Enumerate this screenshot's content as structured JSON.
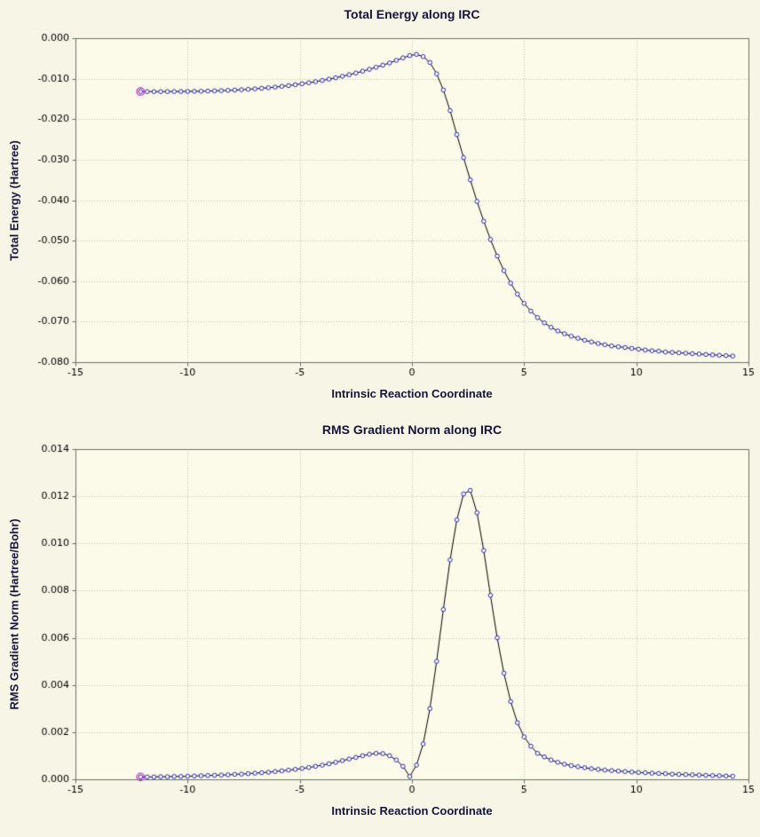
{
  "style": {
    "figure_bg": "#f6f5e6",
    "plot_bg": "#fcfbe9",
    "grid_color": "#b9c2ac",
    "axis_color": "#6b7368",
    "tick_label_color": "#000000",
    "text_color": "#14143c",
    "frame_top_color": "#4a70c0",
    "frame_edge_color": "#9aa4b0"
  },
  "chart_data": [
    {
      "type": "line",
      "title": "Total Energy along IRC",
      "xlabel": "Intrinsic Reaction Coordinate",
      "ylabel": "Total Energy (Hartree)",
      "xlim": [
        -15,
        15
      ],
      "ylim": [
        -0.08,
        0.0
      ],
      "xticks": [
        -15,
        -10,
        -5,
        0,
        5,
        10,
        15
      ],
      "yticks": [
        0,
        -0.01,
        -0.02,
        -0.03,
        -0.04,
        -0.05,
        -0.06,
        -0.07,
        -0.08
      ],
      "xtick_decimals": 0,
      "ytick_decimals": 3,
      "grid": true,
      "legend": "none",
      "line_color": "#000000",
      "marker_color": "#2929c0",
      "marker_fill": "#fcfbe9",
      "highlight_first_point": true,
      "highlight_color": "#d23bd2",
      "x": [
        -12.1,
        -11.8,
        -11.5,
        -11.2,
        -10.9,
        -10.6,
        -10.3,
        -10.0,
        -9.7,
        -9.4,
        -9.1,
        -8.8,
        -8.5,
        -8.2,
        -7.9,
        -7.6,
        -7.3,
        -7.0,
        -6.7,
        -6.4,
        -6.1,
        -5.8,
        -5.5,
        -5.2,
        -4.9,
        -4.6,
        -4.3,
        -4.0,
        -3.7,
        -3.4,
        -3.1,
        -2.8,
        -2.5,
        -2.2,
        -1.9,
        -1.6,
        -1.3,
        -1.0,
        -0.7,
        -0.4,
        -0.1,
        0.2,
        0.5,
        0.8,
        1.1,
        1.4,
        1.7,
        2.0,
        2.3,
        2.6,
        2.9,
        3.2,
        3.5,
        3.8,
        4.1,
        4.4,
        4.7,
        5.0,
        5.3,
        5.6,
        5.9,
        6.2,
        6.5,
        6.8,
        7.1,
        7.4,
        7.7,
        8.0,
        8.3,
        8.6,
        8.9,
        9.2,
        9.5,
        9.8,
        10.1,
        10.4,
        10.7,
        11.0,
        11.3,
        11.6,
        11.9,
        12.2,
        12.5,
        12.8,
        13.1,
        13.4,
        13.7,
        14.0,
        14.3
      ],
      "y": [
        -0.0132,
        -0.0132,
        -0.0132,
        -0.0132,
        -0.01319,
        -0.01318,
        -0.01317,
        -0.01315,
        -0.01313,
        -0.0131,
        -0.01306,
        -0.01301,
        -0.01296,
        -0.01289,
        -0.01282,
        -0.01273,
        -0.01263,
        -0.01251,
        -0.01238,
        -0.01224,
        -0.01208,
        -0.0119,
        -0.01171,
        -0.01149,
        -0.01126,
        -0.01101,
        -0.01074,
        -0.01044,
        -0.01012,
        -0.00978,
        -0.00941,
        -0.00902,
        -0.00861,
        -0.00816,
        -0.00769,
        -0.00719,
        -0.00666,
        -0.00612,
        -0.00548,
        -0.00486,
        -0.0043,
        -0.004,
        -0.00455,
        -0.006,
        -0.0088,
        -0.0128,
        -0.0179,
        -0.0238,
        -0.0295,
        -0.035,
        -0.0403,
        -0.0452,
        -0.0497,
        -0.0538,
        -0.0574,
        -0.0605,
        -0.0632,
        -0.0655,
        -0.0674,
        -0.069,
        -0.0703,
        -0.0714,
        -0.0723,
        -0.073,
        -0.0736,
        -0.0741,
        -0.0746,
        -0.075,
        -0.0754,
        -0.0757,
        -0.076,
        -0.0762,
        -0.0764,
        -0.0766,
        -0.0768,
        -0.077,
        -0.0772,
        -0.0773,
        -0.0775,
        -0.0776,
        -0.0777,
        -0.0778,
        -0.0779,
        -0.078,
        -0.0781,
        -0.0782,
        -0.0783,
        -0.0784,
        -0.0785
      ]
    },
    {
      "type": "line",
      "title": "RMS Gradient Norm along IRC",
      "xlabel": "Intrinsic Reaction Coordinate",
      "ylabel": "RMS Gradient Norm (Hartree/Bohr)",
      "xlim": [
        -15,
        15
      ],
      "ylim": [
        0.0,
        0.014
      ],
      "xticks": [
        -15,
        -10,
        -5,
        0,
        5,
        10,
        15
      ],
      "yticks": [
        0,
        0.002,
        0.004,
        0.006,
        0.008,
        0.01,
        0.012,
        0.014
      ],
      "xtick_decimals": 0,
      "ytick_decimals": 3,
      "grid": true,
      "legend": "none",
      "line_color": "#000000",
      "marker_color": "#2929c0",
      "marker_fill": "#fcfbe9",
      "highlight_first_point": true,
      "highlight_color": "#d23bd2",
      "x": [
        -12.1,
        -11.8,
        -11.5,
        -11.2,
        -10.9,
        -10.6,
        -10.3,
        -10.0,
        -9.7,
        -9.4,
        -9.1,
        -8.8,
        -8.5,
        -8.2,
        -7.9,
        -7.6,
        -7.3,
        -7.0,
        -6.7,
        -6.4,
        -6.1,
        -5.8,
        -5.5,
        -5.2,
        -4.9,
        -4.6,
        -4.3,
        -4.0,
        -3.7,
        -3.4,
        -3.1,
        -2.8,
        -2.5,
        -2.2,
        -1.9,
        -1.6,
        -1.3,
        -1.0,
        -0.7,
        -0.4,
        -0.1,
        0.2,
        0.5,
        0.8,
        1.1,
        1.4,
        1.7,
        2.0,
        2.3,
        2.6,
        2.9,
        3.2,
        3.5,
        3.8,
        4.1,
        4.4,
        4.7,
        5.0,
        5.3,
        5.6,
        5.9,
        6.2,
        6.5,
        6.8,
        7.1,
        7.4,
        7.7,
        8.0,
        8.3,
        8.6,
        8.9,
        9.2,
        9.5,
        9.8,
        10.1,
        10.4,
        10.7,
        11.0,
        11.3,
        11.6,
        11.9,
        12.2,
        12.5,
        12.8,
        13.1,
        13.4,
        13.7,
        14.0,
        14.3
      ],
      "y": [
        0.0001,
        0.0001,
        0.0001,
        0.00011,
        0.00011,
        0.00012,
        0.00012,
        0.00013,
        0.00014,
        0.00015,
        0.00016,
        0.00017,
        0.00018,
        0.00019,
        0.00021,
        0.00022,
        0.00024,
        0.00026,
        0.00028,
        0.0003,
        0.00033,
        0.00036,
        0.00039,
        0.00042,
        0.00046,
        0.0005,
        0.00055,
        0.0006,
        0.00066,
        0.00072,
        0.00079,
        0.00086,
        0.00093,
        0.001,
        0.00106,
        0.0011,
        0.00109,
        0.001,
        0.00082,
        0.00055,
        0.00012,
        0.0006,
        0.0015,
        0.003,
        0.005,
        0.0072,
        0.0093,
        0.011,
        0.0121,
        0.01225,
        0.0113,
        0.0097,
        0.0078,
        0.006,
        0.0045,
        0.0033,
        0.0024,
        0.0018,
        0.0014,
        0.0011,
        0.00095,
        0.00082,
        0.00072,
        0.00064,
        0.00058,
        0.00053,
        0.00049,
        0.00045,
        0.00042,
        0.00039,
        0.00037,
        0.00035,
        0.00033,
        0.00031,
        0.00029,
        0.00028,
        0.00026,
        0.00025,
        0.00024,
        0.00022,
        0.00021,
        0.0002,
        0.00019,
        0.00018,
        0.00017,
        0.00016,
        0.00015,
        0.00014,
        0.00013
      ]
    }
  ]
}
